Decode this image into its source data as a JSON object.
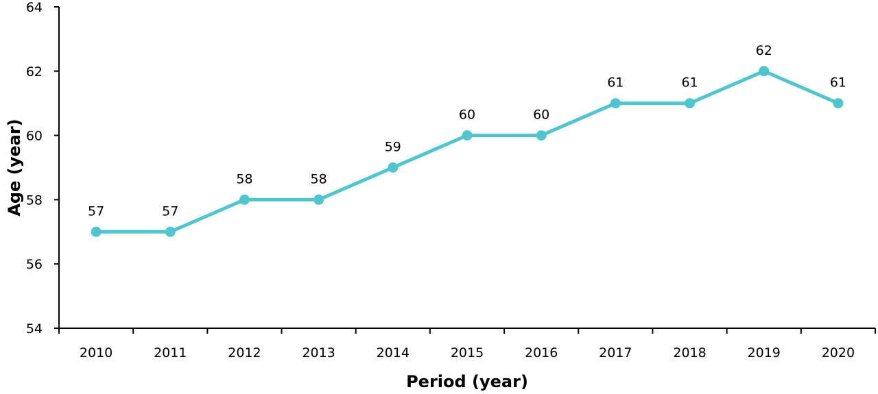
{
  "chart_data": {
    "type": "line",
    "title": "",
    "xlabel": "Period (year)",
    "ylabel": "Age (year)",
    "categories": [
      "2010",
      "2011",
      "2012",
      "2013",
      "2014",
      "2015",
      "2016",
      "2017",
      "2018",
      "2019",
      "2020"
    ],
    "series": [
      {
        "values": [
          57,
          57,
          58,
          58,
          59,
          60,
          60,
          61,
          61,
          62,
          61
        ]
      }
    ],
    "data_labels": [
      "57",
      "57",
      "58",
      "58",
      "59",
      "60",
      "60",
      "61",
      "61",
      "62",
      "61"
    ],
    "ylim": [
      54,
      64
    ],
    "yticks": [
      "54",
      "56",
      "58",
      "60",
      "62",
      "64"
    ],
    "grid": false,
    "legend": "none",
    "colors": {
      "line": "#4FC6CF",
      "axis": "#000000"
    }
  }
}
